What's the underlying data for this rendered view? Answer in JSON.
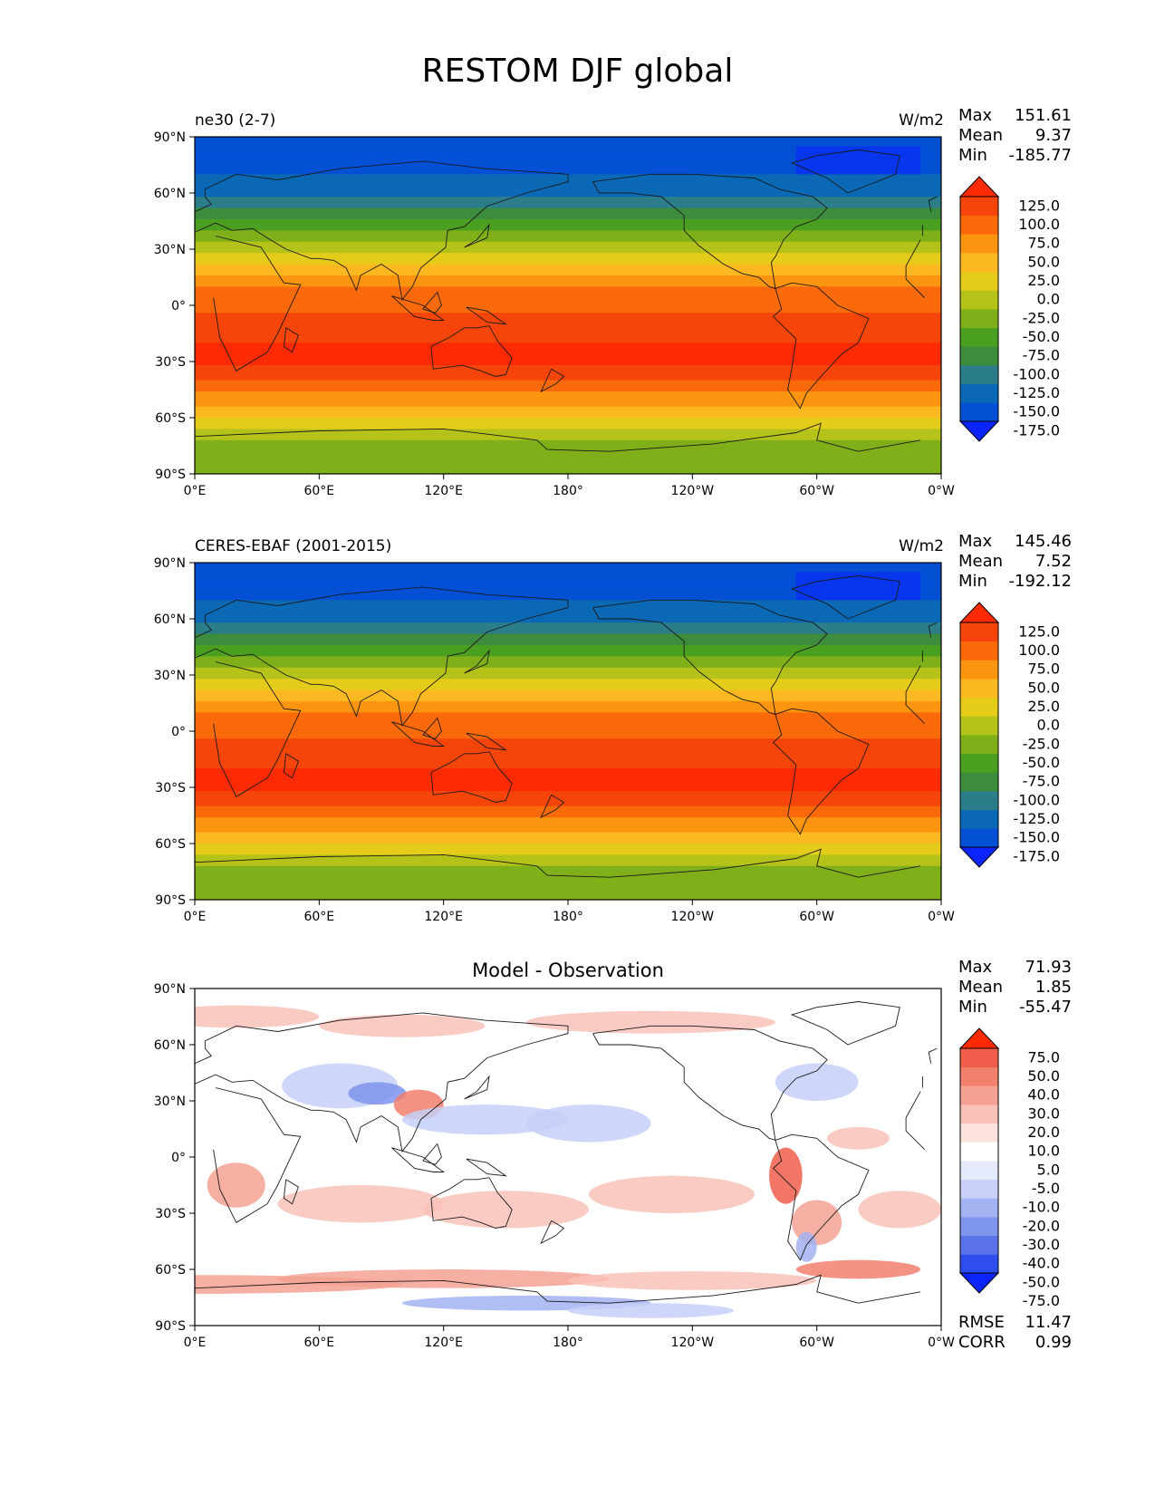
{
  "figure_title": "RESTOM DJF global",
  "units": "W/m2",
  "lon_ticks": [
    "0°E",
    "60°E",
    "120°E",
    "180°",
    "120°W",
    "60°W",
    "0°W"
  ],
  "lat_ticks": [
    "90°N",
    "60°N",
    "30°N",
    "0°",
    "30°S",
    "60°S",
    "90°S"
  ],
  "abs_colorbar": {
    "labels": [
      "125.0",
      "100.0",
      "75.0",
      "50.0",
      "25.0",
      "0.0",
      "-25.0",
      "-50.0",
      "-75.0",
      "-100.0",
      "-125.0",
      "-150.0",
      "-175.0"
    ],
    "colors": [
      "#0b24fb",
      "#0350d5",
      "#0b68b4",
      "#2b7d8a",
      "#3d8b3d",
      "#4a9e20",
      "#7fb01a",
      "#b4c21a",
      "#e6cc1a",
      "#fbb820",
      "#fb9510",
      "#fb6a0a",
      "#f5450a",
      "#fe2a04"
    ]
  },
  "diff_colorbar": {
    "labels": [
      "75.0",
      "50.0",
      "40.0",
      "30.0",
      "20.0",
      "10.0",
      "5.0",
      "-5.0",
      "-10.0",
      "-20.0",
      "-30.0",
      "-40.0",
      "-50.0",
      "-75.0"
    ],
    "colors": [
      "#0b24fb",
      "#2e4ef0",
      "#5a73e8",
      "#7f94ec",
      "#a3b3f2",
      "#c6d0f8",
      "#e4e9fc",
      "#ffffff",
      "#fde2dc",
      "#f9c2b8",
      "#f5a193",
      "#f2806d",
      "#f05d4a",
      "#fe2a04"
    ]
  },
  "panels": [
    {
      "title_left": "ne30 (2-7)",
      "title_right": "W/m2",
      "title_center": "",
      "stats": {
        "max_label": "Max",
        "max": "151.61",
        "mean_label": "Mean",
        "mean": "9.37",
        "min_label": "Min",
        "min": "-185.77"
      },
      "extra_stats": null
    },
    {
      "title_left": "CERES-EBAF (2001-2015)",
      "title_right": "W/m2",
      "title_center": "",
      "stats": {
        "max_label": "Max",
        "max": "145.46",
        "mean_label": "Mean",
        "mean": "7.52",
        "min_label": "Min",
        "min": "-192.12"
      },
      "extra_stats": null
    },
    {
      "title_left": "",
      "title_right": "",
      "title_center": "Model - Observation",
      "stats": {
        "max_label": "Max",
        "max": "71.93",
        "mean_label": "Mean",
        "mean": "1.85",
        "min_label": "Min",
        "min": "-55.47"
      },
      "extra_stats": {
        "rmse_label": "RMSE",
        "rmse": "11.47",
        "corr_label": "CORR",
        "corr": "0.99"
      }
    }
  ]
}
